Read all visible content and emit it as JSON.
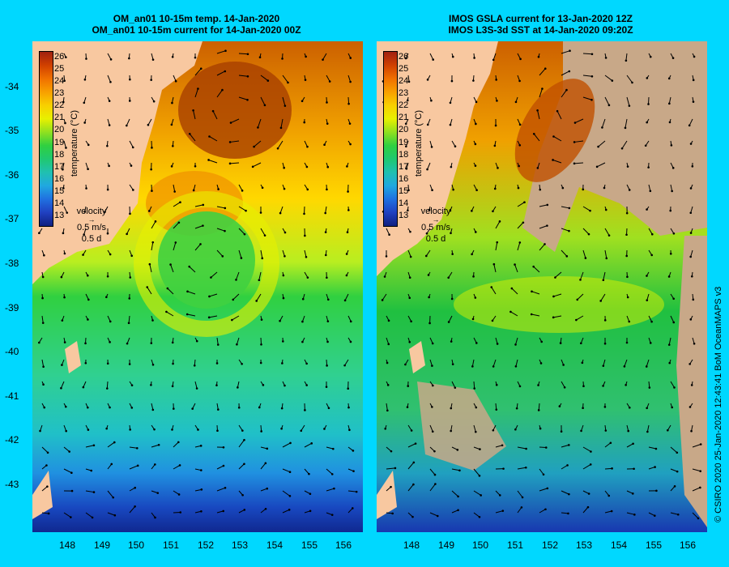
{
  "left_panel": {
    "title_line1": "OM_an01 10-15m temp. 14-Jan-2020",
    "title_line2": "OM_an01 10-15m current for 14-Jan-2020 00Z"
  },
  "right_panel": {
    "title_line1": "IMOS GSLA current for 13-Jan-2020 12Z",
    "title_line2": "IMOS L3S-3d SST at 14-Jan-2020 09:20Z"
  },
  "x_ticks": [
    "148",
    "149",
    "150",
    "151",
    "152",
    "153",
    "154",
    "155",
    "156"
  ],
  "y_ticks": [
    "-34",
    "-35",
    "-36",
    "-37",
    "-38",
    "-39",
    "-40",
    "-41",
    "-42",
    "-43"
  ],
  "colorbar": {
    "title": "temperature (°C)",
    "labels": [
      "26",
      "25",
      "24",
      "23",
      "22",
      "21",
      "20",
      "19",
      "18",
      "17",
      "16",
      "15",
      "14",
      "13"
    ]
  },
  "velocity_key": {
    "label": "velocity",
    "speed": "0.5 m/s",
    "duration": "0.5 d"
  },
  "credit": "© CSIRO 2020   25-Jan-2020 12:43:41 BoM OceanMAPS v3",
  "colors": {
    "background": "#00d8ff",
    "land": "#f8c8a0",
    "cloud": "#c8a888"
  }
}
